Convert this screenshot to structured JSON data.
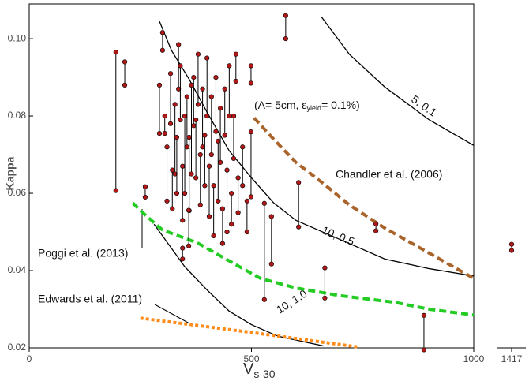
{
  "chart_data": [
    {
      "type": "scatter",
      "ylabel": "Kappa",
      "xlabel": "V",
      "xlabel_sub": "s-30",
      "xlim": [
        0,
        1000
      ],
      "xticks": [
        0,
        500,
        1000
      ],
      "ylim": [
        0.02,
        0.109
      ],
      "yticks": [
        0.02,
        0.04,
        0.06,
        0.08,
        {
          "value": 0.1,
          "label": "0.10"
        }
      ],
      "annotation": {
        "pre": "(A= 5cm, ε",
        "sub": "yield",
        "post": "= 0.1%)"
      },
      "point_color": "#b01818",
      "x": [
        195,
        215,
        261,
        293,
        300,
        305,
        310,
        318,
        322,
        328,
        332,
        336,
        340,
        345,
        350,
        355,
        360,
        365,
        370,
        375,
        380,
        385,
        390,
        395,
        400,
        405,
        410,
        415,
        420,
        425,
        430,
        435,
        440,
        445,
        450,
        455,
        460,
        465,
        470,
        480,
        490,
        345,
        359,
        499,
        499,
        529,
        545,
        577,
        606,
        665,
        780,
        888
      ],
      "upper": [
        0.0965,
        0.094,
        0.0617,
        0.088,
        0.1016,
        0.08,
        0.072,
        0.091,
        0.066,
        0.083,
        0.0745,
        0.0985,
        0.093,
        0.067,
        0.08,
        0.085,
        0.0745,
        0.088,
        0.09,
        0.079,
        0.096,
        0.07,
        0.087,
        0.075,
        0.095,
        0.067,
        0.085,
        0.062,
        0.09,
        0.0735,
        0.082,
        0.056,
        0.087,
        0.066,
        0.093,
        0.06,
        0.08,
        0.096,
        0.064,
        0.072,
        0.058,
        0.0458,
        0.0556,
        0.093,
        0.0759,
        0.0574,
        0.054,
        0.106,
        0.0628,
        0.0407,
        0.0521,
        0.0284
      ],
      "lower": [
        0.0607,
        0.088,
        0.059,
        0.0755,
        0.097,
        0.0755,
        0.058,
        0.078,
        0.056,
        0.065,
        0.06,
        0.087,
        0.079,
        0.053,
        0.06,
        0.072,
        0.0555,
        0.065,
        0.0775,
        0.064,
        0.083,
        0.057,
        0.072,
        0.062,
        0.08,
        0.054,
        0.07,
        0.049,
        0.076,
        0.058,
        0.068,
        0.047,
        0.075,
        0.05,
        0.08,
        0.052,
        0.069,
        0.089,
        0.055,
        0.062,
        0.05,
        0.043,
        0.0464,
        0.0885,
        0.0591,
        0.0325,
        0.0417,
        0.1,
        0.0513,
        0.0329,
        0.0503,
        0.0195
      ],
      "series": [
        {
          "name": "5, 0.1",
          "color": "#000000",
          "dash": "solid",
          "x": [
            657,
            720,
            800,
            900,
            1000
          ],
          "values": [
            0.1057,
            0.096,
            0.0875,
            0.079,
            0.0724
          ]
        },
        {
          "name": "10,  0.5",
          "color": "#000000",
          "dash": "solid",
          "x": [
            293,
            320,
            360,
            400,
            450,
            500,
            550,
            600,
            650,
            700,
            800,
            900,
            1000
          ],
          "values": [
            0.1045,
            0.097,
            0.0895,
            0.081,
            0.071,
            0.064,
            0.0575,
            0.053,
            0.0505,
            0.048,
            0.043,
            0.0405,
            0.0386
          ]
        },
        {
          "name": "10, 1.0",
          "color": "#000000",
          "dash": "solid",
          "x": [
            281,
            350,
            400,
            450,
            500,
            560,
            662
          ],
          "values": [
            0.052,
            0.041,
            0.035,
            0.0295,
            0.026,
            0.023,
            0.0205
          ]
        },
        {
          "name": "Chandler et al. (2006)",
          "color": "#a8642a",
          "dash": "dashed",
          "x": [
            506,
            550,
            600,
            662,
            720,
            800,
            900,
            1000
          ],
          "values": [
            0.0795,
            0.074,
            0.068,
            0.0625,
            0.057,
            0.051,
            0.0445,
            0.038
          ]
        },
        {
          "name": "Poggi et al. (2013)",
          "color": "#22cc22",
          "dash": "dashed",
          "x": [
            233,
            260,
            300,
            378,
            450,
            520,
            600,
            700,
            822,
            900,
            1000
          ],
          "values": [
            0.0575,
            0.0545,
            0.0505,
            0.0472,
            0.0425,
            0.038,
            0.0355,
            0.0335,
            0.0318,
            0.03,
            0.0285
          ]
        },
        {
          "name": "Edwards et al. (2011)",
          "color": "#ff8c1a",
          "dash": "dotted",
          "x": [
            250,
            500,
            742
          ],
          "values": [
            0.0277,
            0.024,
            0.0202
          ]
        }
      ]
    },
    {
      "type": "scatter",
      "xlim": [
        1400,
        1434
      ],
      "xticks": [
        1417
      ],
      "ylim": [
        0.02,
        0.109
      ],
      "point_color": "#b01818",
      "x": [
        1417
      ],
      "upper": [
        0.0468
      ],
      "lower": [
        0.0452
      ]
    }
  ]
}
